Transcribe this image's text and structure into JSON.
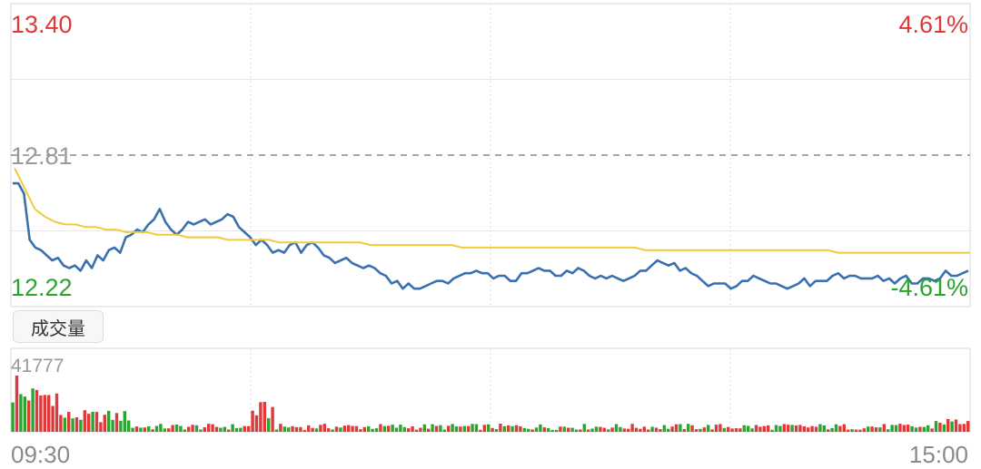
{
  "price_panel": {
    "price_high": "13.40",
    "price_ref": "12.81",
    "price_low": "12.22",
    "pct_high": "4.61%",
    "pct_low": "-4.61%"
  },
  "volume_panel": {
    "button_label": "成交量",
    "max_label": "41777"
  },
  "time_axis": {
    "start": "09:30",
    "end": "15:00"
  },
  "colors": {
    "up": "#e0393a",
    "down": "#2aa52e",
    "price_line": "#3a6fb0",
    "avg_line": "#f0cc3c",
    "grid": "#e6e6e6"
  },
  "chart_data": {
    "type": "line",
    "ylim": [
      12.22,
      13.4
    ],
    "ref_price": 12.81,
    "x_range": [
      "09:30",
      "15:00"
    ],
    "series": [
      {
        "values": [
          12.7,
          12.7,
          12.66,
          12.48,
          12.45,
          12.44,
          12.42,
          12.4,
          12.41,
          12.38,
          12.37,
          12.38,
          12.36,
          12.4,
          12.37,
          12.42,
          12.4,
          12.44,
          12.45,
          12.43,
          12.49,
          12.5,
          12.52,
          12.51,
          12.54,
          12.56,
          12.6,
          12.55,
          12.52,
          12.5,
          12.52,
          12.55,
          12.54,
          12.55,
          12.56,
          12.54,
          12.55,
          12.56,
          12.58,
          12.57,
          12.53,
          12.51,
          12.49,
          12.46,
          12.48,
          12.46,
          12.43,
          12.44,
          12.43,
          12.46,
          12.47,
          12.43,
          12.46,
          12.47,
          12.45,
          12.42,
          12.41,
          12.39,
          12.4,
          12.41,
          12.39,
          12.38,
          12.37,
          12.38,
          12.37,
          12.35,
          12.34,
          12.31,
          12.32,
          12.29,
          12.31,
          12.29,
          12.29,
          12.3,
          12.31,
          12.32,
          12.32,
          12.31,
          12.33,
          12.34,
          12.35,
          12.35,
          12.36,
          12.35,
          12.35,
          12.33,
          12.34,
          12.34,
          12.32,
          12.32,
          12.35,
          12.35,
          12.36,
          12.37,
          12.36,
          12.36,
          12.34,
          12.34,
          12.36,
          12.35,
          12.37,
          12.36,
          12.34,
          12.33,
          12.34,
          12.33,
          12.34,
          12.33,
          12.32,
          12.33,
          12.34,
          12.36,
          12.36,
          12.38,
          12.4,
          12.39,
          12.38,
          12.39,
          12.36,
          12.37,
          12.35,
          12.34,
          12.32,
          12.3,
          12.31,
          12.31,
          12.31,
          12.29,
          12.3,
          12.32,
          12.32,
          12.34,
          12.33,
          12.32,
          12.31,
          12.31,
          12.3,
          12.29,
          12.3,
          12.31,
          12.33,
          12.3,
          12.32,
          12.32,
          12.32,
          12.34,
          12.35,
          12.33,
          12.34,
          12.34,
          12.33,
          12.33,
          12.33,
          12.34,
          12.32,
          12.33,
          12.31,
          12.33,
          12.34,
          12.31,
          12.31,
          12.33,
          12.33,
          12.32,
          12.33,
          12.36,
          12.34,
          12.34,
          12.35,
          12.36
        ],
        "note_units": "price per minute"
      },
      {
        "values": [
          12.76,
          12.68,
          12.6,
          12.57,
          12.55,
          12.54,
          12.54,
          12.53,
          12.53,
          12.52,
          12.52,
          12.51,
          12.51,
          12.51,
          12.5,
          12.5,
          12.5,
          12.49,
          12.49,
          12.49,
          12.49,
          12.48,
          12.48,
          12.48,
          12.48,
          12.48,
          12.47,
          12.47,
          12.47,
          12.47,
          12.47,
          12.47,
          12.47,
          12.47,
          12.47,
          12.46,
          12.46,
          12.46,
          12.46,
          12.46,
          12.46,
          12.46,
          12.46,
          12.46,
          12.45,
          12.45,
          12.45,
          12.45,
          12.45,
          12.45,
          12.45,
          12.45,
          12.45,
          12.45,
          12.45,
          12.45,
          12.45,
          12.45,
          12.45,
          12.45,
          12.45,
          12.45,
          12.44,
          12.44,
          12.44,
          12.44,
          12.44,
          12.44,
          12.44,
          12.44,
          12.44,
          12.44,
          12.44,
          12.44,
          12.44,
          12.44,
          12.44,
          12.44,
          12.44,
          12.44,
          12.44,
          12.43,
          12.43,
          12.43,
          12.43,
          12.43,
          12.43,
          12.43,
          12.43,
          12.43,
          12.43,
          12.43,
          12.43,
          12.43,
          12.43
        ]
      }
    ]
  }
}
